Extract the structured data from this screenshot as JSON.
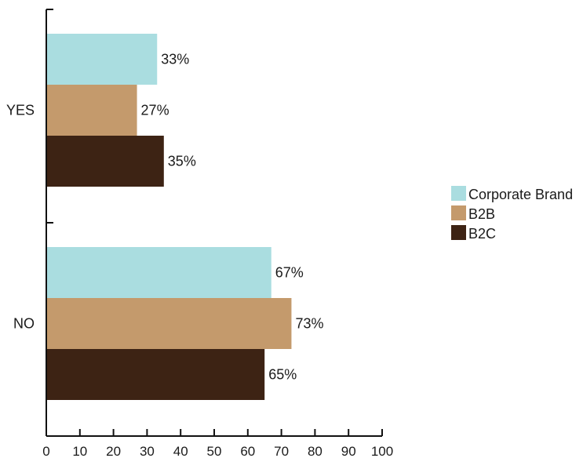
{
  "chart_data": {
    "type": "bar",
    "orientation": "horizontal",
    "categories": [
      "YES",
      "NO"
    ],
    "series": [
      {
        "name": "Corporate Brand",
        "color": "#aadde0",
        "values": [
          33,
          67
        ],
        "labels": [
          "33%",
          "67%"
        ]
      },
      {
        "name": "B2B",
        "color": "#c49a6c",
        "values": [
          27,
          73
        ],
        "labels": [
          "27%",
          "73%"
        ]
      },
      {
        "name": "B2C",
        "color": "#3d2314",
        "values": [
          35,
          65
        ],
        "labels": [
          "35%",
          "65%"
        ]
      }
    ],
    "xlim": [
      0,
      100
    ],
    "xticks": [
      0,
      10,
      20,
      30,
      40,
      50,
      60,
      70,
      80,
      90,
      100
    ],
    "grid": false,
    "legend_position": "right"
  }
}
